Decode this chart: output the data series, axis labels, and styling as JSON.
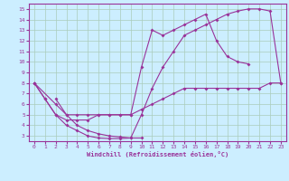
{
  "bg_color": "#cceeff",
  "grid_color": "#aaccbb",
  "line_color": "#993399",
  "xlabel": "Windchill (Refroidissement éolien,°C)",
  "xlim": [
    -0.5,
    23.5
  ],
  "ylim": [
    2.5,
    15.5
  ],
  "xticks": [
    0,
    1,
    2,
    3,
    4,
    5,
    6,
    7,
    8,
    9,
    10,
    11,
    12,
    13,
    14,
    15,
    16,
    17,
    18,
    19,
    20,
    21,
    22,
    23
  ],
  "yticks": [
    3,
    4,
    5,
    6,
    7,
    8,
    9,
    10,
    11,
    12,
    13,
    14,
    15
  ],
  "curve1_x": [
    0,
    1,
    2,
    3,
    4,
    5,
    6,
    7,
    8,
    9,
    10,
    11,
    12,
    13,
    14,
    15,
    16,
    17,
    18,
    19,
    20,
    21,
    22,
    23
  ],
  "curve1_y": [
    8.0,
    6.5,
    5.0,
    4.0,
    3.5,
    3.0,
    2.8,
    2.75,
    2.75,
    2.8,
    5.0,
    7.5,
    9.5,
    11.0,
    12.5,
    13.0,
    13.5,
    14.0,
    14.5,
    14.8,
    15.0,
    15.0,
    14.8,
    8.0
  ],
  "curve2_x": [
    0,
    1,
    2,
    3,
    4,
    5,
    6,
    7,
    8,
    9,
    10,
    11,
    12,
    13,
    14,
    15,
    16,
    17,
    18,
    19,
    20
  ],
  "curve2_y": [
    8.0,
    6.5,
    5.0,
    4.5,
    4.5,
    4.5,
    5.0,
    5.0,
    5.0,
    5.0,
    9.5,
    13.0,
    12.5,
    13.0,
    13.5,
    14.0,
    14.5,
    12.0,
    10.5,
    10.0,
    9.8
  ],
  "curve3_x": [
    0,
    2,
    3,
    4,
    5,
    6,
    7,
    8,
    9,
    10,
    11,
    12,
    13,
    14,
    15,
    16,
    17,
    18,
    19,
    20,
    21,
    22,
    23
  ],
  "curve3_y": [
    8.0,
    6.0,
    5.0,
    5.0,
    5.0,
    5.0,
    5.0,
    5.0,
    5.0,
    5.5,
    6.0,
    6.5,
    7.0,
    7.5,
    7.5,
    7.5,
    7.5,
    7.5,
    7.5,
    7.5,
    7.5,
    8.0,
    8.0
  ],
  "curve4_x": [
    2,
    3,
    4,
    5,
    6,
    7,
    8,
    9,
    10
  ],
  "curve4_y": [
    6.5,
    5.0,
    4.0,
    3.5,
    3.2,
    3.0,
    2.9,
    2.8,
    2.8
  ]
}
